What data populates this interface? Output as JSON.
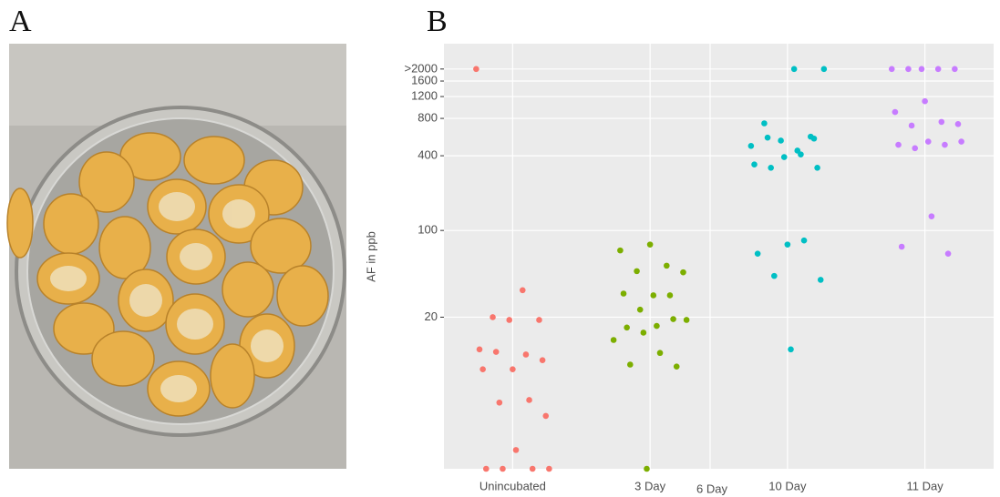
{
  "panel_a": {
    "label": "A"
  },
  "chart_data": {
    "type": "strip",
    "panel_label": "B",
    "ylabel": "AF in ppb",
    "ylog": true,
    "grid": true,
    "ylim": [
      1.2,
      3200
    ],
    "yticks": [
      20,
      100,
      400,
      800,
      1200,
      1600,
      {
        "value": 2000,
        "label": ">2000"
      }
    ],
    "categories": [
      "Unincubated",
      "3 Day",
      "10 Day",
      "11 Day"
    ],
    "annotation": "6 Day",
    "groups": [
      {
        "color": "#f8766d",
        "values": [
          2000,
          33,
          20,
          19,
          19,
          11,
          10,
          10.5,
          9,
          7.6,
          7.6,
          4.3,
          4.1,
          3.2,
          1.7,
          1.2,
          1.2,
          1.2,
          1.2
        ]
      },
      {
        "color": "#7cae00",
        "values": [
          77,
          69,
          52,
          47,
          46,
          30,
          31,
          30,
          23,
          19,
          17,
          16.5,
          19.3,
          15,
          13.1,
          10.3,
          8.3,
          8,
          1.2
        ]
      },
      {
        "color": "#00bfc4",
        "values": [
          2000,
          2000,
          730,
          570,
          530,
          480,
          440,
          560,
          550,
          390,
          340,
          410,
          320,
          320,
          77,
          65,
          83,
          43,
          40,
          11
        ]
      },
      {
        "color": "#c77cff",
        "values": [
          2000,
          2000,
          2000,
          2000,
          2000,
          1100,
          900,
          750,
          700,
          720,
          520,
          490,
          490,
          460,
          520,
          130,
          74,
          65
        ]
      }
    ]
  }
}
